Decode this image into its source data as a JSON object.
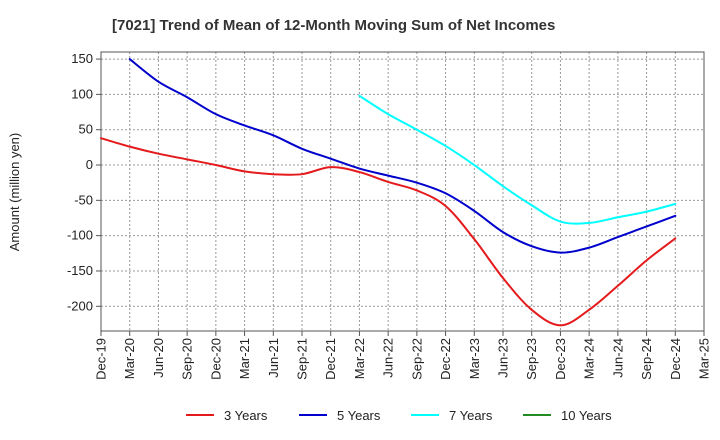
{
  "chart_data": {
    "type": "line",
    "title": "[7021]  Trend of Mean of 12-Month Moving Sum of Net Incomes",
    "xlabel": "",
    "ylabel": "Amount (million yen)",
    "ylim": [
      -235,
      160
    ],
    "yticks": [
      150,
      100,
      50,
      0,
      -50,
      -100,
      -150,
      -200
    ],
    "xtick_labels": [
      "Dec-19",
      "Mar-20",
      "Jun-20",
      "Sep-20",
      "Dec-20",
      "Mar-21",
      "Jun-21",
      "Sep-21",
      "Dec-21",
      "Mar-22",
      "Jun-22",
      "Sep-22",
      "Dec-22",
      "Mar-23",
      "Jun-23",
      "Sep-23",
      "Dec-23",
      "Mar-24",
      "Jun-24",
      "Sep-24",
      "Dec-24",
      "Mar-25"
    ],
    "grid": true,
    "legend_position": "bottom",
    "series": [
      {
        "name": "3 Years",
        "color": "#e41a1c",
        "points": [
          [
            0,
            38
          ],
          [
            1,
            26
          ],
          [
            2,
            16
          ],
          [
            3,
            8
          ],
          [
            4,
            0
          ],
          [
            5,
            -9
          ],
          [
            6,
            -13
          ],
          [
            7,
            -13
          ],
          [
            8,
            -3
          ],
          [
            9,
            -10
          ],
          [
            10,
            -24
          ],
          [
            11,
            -36
          ],
          [
            12,
            -58
          ],
          [
            13,
            -105
          ],
          [
            14,
            -160
          ],
          [
            15,
            -205
          ],
          [
            16,
            -227
          ],
          [
            17,
            -205
          ],
          [
            18,
            -171
          ],
          [
            19,
            -135
          ],
          [
            20,
            -104
          ]
        ]
      },
      {
        "name": "5 Years",
        "color": "#0000cc",
        "points": [
          [
            1,
            150
          ],
          [
            2,
            118
          ],
          [
            3,
            96
          ],
          [
            4,
            72
          ],
          [
            5,
            56
          ],
          [
            6,
            42
          ],
          [
            7,
            23
          ],
          [
            8,
            9
          ],
          [
            9,
            -5
          ],
          [
            10,
            -15
          ],
          [
            11,
            -25
          ],
          [
            12,
            -40
          ],
          [
            13,
            -65
          ],
          [
            14,
            -95
          ],
          [
            15,
            -115
          ],
          [
            16,
            -124
          ],
          [
            17,
            -117
          ],
          [
            18,
            -102
          ],
          [
            19,
            -87
          ],
          [
            20,
            -72
          ]
        ]
      },
      {
        "name": "7 Years",
        "color": "#00ffff",
        "points": [
          [
            9,
            98
          ],
          [
            10,
            72
          ],
          [
            11,
            50
          ],
          [
            12,
            27
          ],
          [
            13,
            0
          ],
          [
            14,
            -30
          ],
          [
            15,
            -57
          ],
          [
            16,
            -80
          ],
          [
            17,
            -82
          ],
          [
            18,
            -74
          ],
          [
            19,
            -66
          ],
          [
            20,
            -55
          ]
        ]
      },
      {
        "name": "10 Years",
        "color": "#228b22",
        "points": []
      }
    ]
  }
}
